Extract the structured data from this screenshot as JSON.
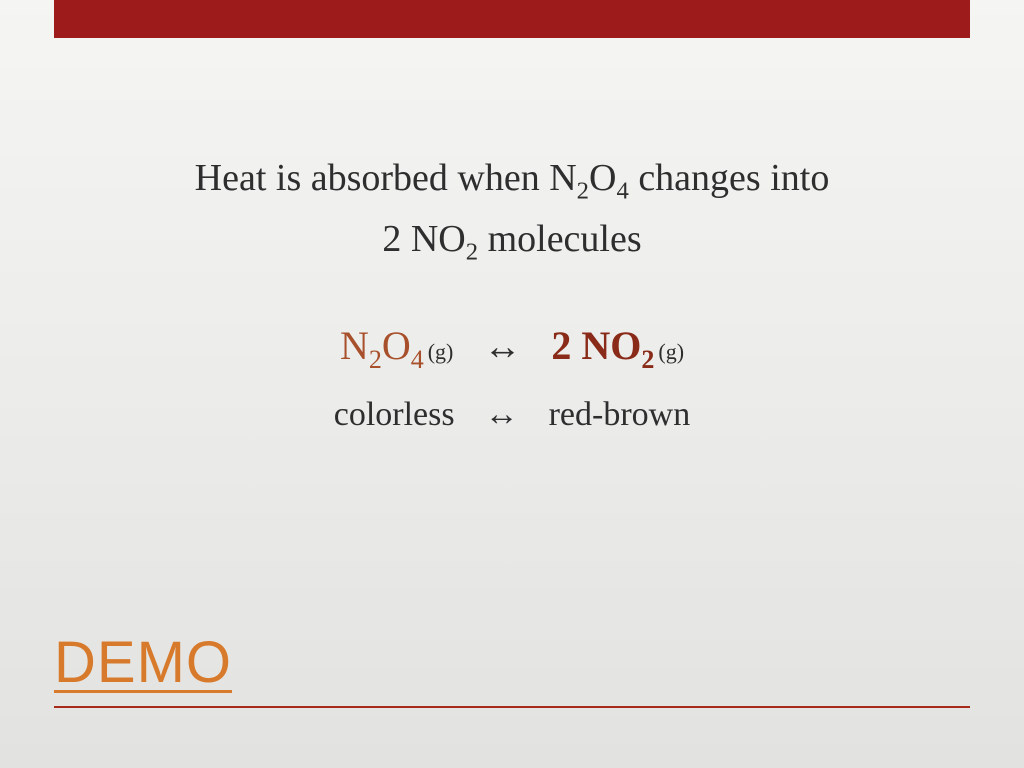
{
  "colors": {
    "accent_bar": "#9e1b1b",
    "body_text": "#2e2e2e",
    "reactant": "#a8502c",
    "product": "#8a2a18",
    "demo_title": "#d87a2b",
    "hr": "#a82a1a"
  },
  "heading": {
    "line1_pre": "Heat is absorbed when N",
    "line1_sub1": "2",
    "line1_mid": "O",
    "line1_sub2": "4",
    "line1_post": " changes into",
    "line2_pre": "2 NO",
    "line2_sub": "2",
    "line2_post": " molecules"
  },
  "equation": {
    "reactant_N": "N",
    "reactant_sub1": "2",
    "reactant_O": "O",
    "reactant_sub2": "4",
    "reactant_state": "(g)",
    "arrow": "↔",
    "product_coeff": "2 NO",
    "product_sub": "2",
    "product_state": "(g)"
  },
  "color_desc": {
    "left": "colorless",
    "arrow": "↔",
    "right": "red-brown"
  },
  "footer": {
    "title": "DEMO"
  }
}
